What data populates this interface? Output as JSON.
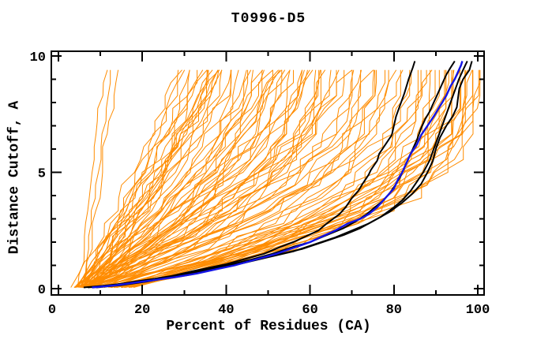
{
  "chart_data": {
    "type": "line",
    "title": "T0996-D5",
    "xlabel": "Percent of Residues (CA)",
    "ylabel": "Distance Cutoff, A",
    "xlim": [
      0,
      100
    ],
    "ylim": [
      0,
      10
    ],
    "x_major_ticks": [
      0,
      20,
      40,
      60,
      80,
      100
    ],
    "x_minor_ticks": [
      10,
      30,
      50,
      70,
      90
    ],
    "y_major_ticks": [
      0,
      5,
      10
    ],
    "y_minor_ticks": [
      1,
      2,
      3,
      4,
      6,
      7,
      8,
      9
    ],
    "grid": false,
    "legend": false,
    "colors": {
      "ensemble": "#ff8c00",
      "reference": "#000000",
      "highlight": "#1414e6",
      "frame": "#000000",
      "background": "#ffffff"
    },
    "highlight_series": [
      {
        "name": "reference-model-1",
        "color_role": "reference",
        "points": [
          [
            6,
            0.05
          ],
          [
            12,
            0.15
          ],
          [
            17,
            0.25
          ],
          [
            22,
            0.4
          ],
          [
            27,
            0.55
          ],
          [
            32,
            0.75
          ],
          [
            36,
            0.9
          ],
          [
            40,
            1.05
          ],
          [
            45,
            1.3
          ],
          [
            49,
            1.5
          ],
          [
            53,
            1.8
          ],
          [
            56,
            2.0
          ],
          [
            59,
            2.25
          ],
          [
            62,
            2.5
          ],
          [
            64,
            2.8
          ],
          [
            65.5,
            3.0
          ],
          [
            67,
            3.2
          ],
          [
            68.5,
            3.5
          ],
          [
            70,
            3.9
          ],
          [
            71.5,
            4.2
          ],
          [
            72.5,
            4.5
          ],
          [
            74,
            4.9
          ],
          [
            74.5,
            5.1
          ],
          [
            76,
            5.5
          ],
          [
            76.5,
            5.8
          ],
          [
            78,
            6.2
          ],
          [
            79.5,
            6.6
          ],
          [
            80,
            7.0
          ],
          [
            80.5,
            7.4
          ],
          [
            81.5,
            7.9
          ],
          [
            82.5,
            8.4
          ],
          [
            83.5,
            9.0
          ],
          [
            84.5,
            9.5
          ],
          [
            85,
            9.78
          ]
        ]
      },
      {
        "name": "reference-model-2",
        "color_role": "reference",
        "points": [
          [
            7,
            0.05
          ],
          [
            13,
            0.15
          ],
          [
            18,
            0.3
          ],
          [
            24,
            0.45
          ],
          [
            30,
            0.6
          ],
          [
            35,
            0.8
          ],
          [
            40,
            1.0
          ],
          [
            46,
            1.25
          ],
          [
            51,
            1.5
          ],
          [
            56,
            1.8
          ],
          [
            60,
            2.0
          ],
          [
            64,
            2.3
          ],
          [
            68,
            2.6
          ],
          [
            71,
            2.9
          ],
          [
            73.5,
            3.2
          ],
          [
            75.5,
            3.5
          ],
          [
            77.5,
            3.8
          ],
          [
            79,
            4.1
          ],
          [
            80.5,
            4.5
          ],
          [
            81.5,
            4.8
          ],
          [
            82.5,
            5.2
          ],
          [
            83.5,
            5.6
          ],
          [
            84.5,
            6.0
          ],
          [
            85.5,
            6.4
          ],
          [
            86.5,
            6.9
          ],
          [
            87.5,
            7.3
          ],
          [
            88.5,
            7.6
          ],
          [
            89.5,
            8.0
          ],
          [
            90.5,
            8.4
          ],
          [
            91.5,
            8.8
          ],
          [
            92.5,
            9.2
          ],
          [
            93.5,
            9.5
          ],
          [
            94.5,
            9.78
          ]
        ]
      },
      {
        "name": "reference-model-3",
        "color_role": "reference",
        "points": [
          [
            8,
            0.05
          ],
          [
            14,
            0.15
          ],
          [
            20,
            0.3
          ],
          [
            26,
            0.5
          ],
          [
            32,
            0.7
          ],
          [
            38,
            0.9
          ],
          [
            44,
            1.1
          ],
          [
            50,
            1.35
          ],
          [
            56,
            1.6
          ],
          [
            61,
            1.9
          ],
          [
            66,
            2.2
          ],
          [
            70,
            2.5
          ],
          [
            74,
            2.8
          ],
          [
            77,
            3.1
          ],
          [
            80,
            3.5
          ],
          [
            82,
            3.8
          ],
          [
            84,
            4.2
          ],
          [
            85.5,
            4.6
          ],
          [
            87,
            5.0
          ],
          [
            88.5,
            5.5
          ],
          [
            89.5,
            6.0
          ],
          [
            90.5,
            6.5
          ],
          [
            91.5,
            7.0
          ],
          [
            92.5,
            7.5
          ],
          [
            93.5,
            8.0
          ],
          [
            94.5,
            8.5
          ],
          [
            95.5,
            9.0
          ],
          [
            96.5,
            9.4
          ],
          [
            97.5,
            9.78
          ]
        ]
      },
      {
        "name": "reference-model-4",
        "color_role": "reference",
        "points": [
          [
            9,
            0.05
          ],
          [
            15,
            0.15
          ],
          [
            21,
            0.3
          ],
          [
            27,
            0.5
          ],
          [
            33,
            0.7
          ],
          [
            39,
            0.95
          ],
          [
            46,
            1.2
          ],
          [
            52,
            1.45
          ],
          [
            58,
            1.7
          ],
          [
            63,
            2.0
          ],
          [
            68,
            2.3
          ],
          [
            72,
            2.6
          ],
          [
            76,
            3.0
          ],
          [
            79,
            3.3
          ],
          [
            82,
            3.7
          ],
          [
            84.5,
            4.1
          ],
          [
            86.5,
            4.5
          ],
          [
            88,
            5.0
          ],
          [
            89.3,
            5.5
          ],
          [
            90,
            6.0
          ],
          [
            91,
            6.5
          ],
          [
            92.5,
            7.0
          ],
          [
            94,
            7.4
          ],
          [
            95,
            7.8
          ],
          [
            95.3,
            8.2
          ],
          [
            95.6,
            8.6
          ],
          [
            96.5,
            9.0
          ],
          [
            98,
            9.4
          ],
          [
            98.6,
            9.78
          ]
        ]
      },
      {
        "name": "highlighted-model-blue",
        "color_role": "highlight",
        "points": [
          [
            8,
            0.05
          ],
          [
            14,
            0.15
          ],
          [
            18,
            0.25
          ],
          [
            22,
            0.35
          ],
          [
            28,
            0.5
          ],
          [
            33,
            0.65
          ],
          [
            38,
            0.85
          ],
          [
            42,
            1.0
          ],
          [
            47,
            1.25
          ],
          [
            52,
            1.5
          ],
          [
            56,
            1.75
          ],
          [
            60,
            2.0
          ],
          [
            63,
            2.25
          ],
          [
            66,
            2.5
          ],
          [
            69,
            2.8
          ],
          [
            72,
            3.0
          ],
          [
            74,
            3.2
          ],
          [
            76,
            3.5
          ],
          [
            77.5,
            3.8
          ],
          [
            78.5,
            4.0
          ],
          [
            80,
            4.3
          ],
          [
            81,
            4.7
          ],
          [
            82,
            5.0
          ],
          [
            83,
            5.4
          ],
          [
            84,
            5.8
          ],
          [
            85.5,
            6.2
          ],
          [
            86.5,
            6.6
          ],
          [
            88,
            7.0
          ],
          [
            89.5,
            7.4
          ],
          [
            90.5,
            7.7
          ],
          [
            91.5,
            8.0
          ],
          [
            92.5,
            8.3
          ],
          [
            93.5,
            8.7
          ],
          [
            94.5,
            9.0
          ],
          [
            95.5,
            9.4
          ],
          [
            96,
            9.6
          ],
          [
            96.3,
            9.78
          ]
        ]
      }
    ],
    "ensemble_series": {
      "name": "model-ensemble-orange",
      "color_role": "ensemble",
      "count": 98,
      "seed": 1337,
      "y_start": 0.05,
      "y_end": 9.78,
      "y_step": 0.55,
      "curve_params_format": [
        "x_at_bottom_percent",
        "x_at_top_percent",
        "concavity_exponent"
      ],
      "curve_params": [
        [
          5,
          11.5,
          0.85
        ],
        [
          5.5,
          13,
          0.9
        ],
        [
          6,
          14.5,
          0.95
        ],
        [
          4,
          29,
          1.1
        ],
        [
          5,
          30,
          1.2
        ],
        [
          6,
          31,
          1.0
        ],
        [
          4.5,
          32,
          1.3
        ],
        [
          5,
          33,
          1.15
        ],
        [
          6.5,
          33.5,
          1.4
        ],
        [
          4,
          34,
          1.2
        ],
        [
          5.5,
          35,
          1.1
        ],
        [
          6,
          35.5,
          1.5
        ],
        [
          7,
          36,
          1.25
        ],
        [
          4.5,
          36.5,
          1.35
        ],
        [
          5,
          37,
          1.2
        ],
        [
          6,
          37.5,
          1.45
        ],
        [
          5.5,
          38,
          1.1
        ],
        [
          6.5,
          38.5,
          1.3
        ],
        [
          7,
          39,
          1.5
        ],
        [
          4.5,
          39.5,
          1.2
        ],
        [
          5,
          40,
          1.35
        ],
        [
          5,
          41,
          1.4
        ],
        [
          6,
          42,
          1.6
        ],
        [
          4.5,
          43,
          1.3
        ],
        [
          5.5,
          44,
          1.7
        ],
        [
          6,
          44.5,
          1.5
        ],
        [
          7,
          45,
          1.8
        ],
        [
          5,
          46,
          1.4
        ],
        [
          6,
          47,
          1.6
        ],
        [
          4.5,
          47.5,
          1.9
        ],
        [
          5.5,
          48,
          1.5
        ],
        [
          6.5,
          49,
          1.7
        ],
        [
          5,
          50,
          1.4
        ],
        [
          6,
          50.5,
          1.8
        ],
        [
          7,
          51,
          1.6
        ],
        [
          5.5,
          52,
          1.9
        ],
        [
          4.5,
          52.5,
          1.5
        ],
        [
          6,
          53,
          1.7
        ],
        [
          5,
          54,
          1.8
        ],
        [
          6.5,
          54.5,
          1.6
        ],
        [
          5.5,
          55,
          1.9
        ],
        [
          5,
          56,
          1.8
        ],
        [
          6,
          57,
          2.0
        ],
        [
          5.5,
          58,
          1.7
        ],
        [
          6.5,
          58.5,
          2.1
        ],
        [
          5,
          59,
          1.9
        ],
        [
          6,
          60,
          1.6
        ],
        [
          7,
          60.5,
          2.2
        ],
        [
          5.5,
          61,
          1.8
        ],
        [
          6,
          62,
          2.0
        ],
        [
          5,
          62.5,
          2.3
        ],
        [
          6.5,
          63,
          1.9
        ],
        [
          5.5,
          64,
          2.1
        ],
        [
          6,
          64.5,
          1.8
        ],
        [
          7,
          65,
          2.2
        ],
        [
          6,
          66,
          2.0
        ],
        [
          7,
          67,
          2.2
        ],
        [
          6.5,
          68,
          1.9
        ],
        [
          8,
          69,
          2.4
        ],
        [
          6,
          70,
          2.1
        ],
        [
          7.5,
          71,
          2.3
        ],
        [
          6.5,
          72,
          2.0
        ],
        [
          8,
          73,
          2.5
        ],
        [
          7,
          74,
          2.2
        ],
        [
          6.5,
          75,
          2.4
        ],
        [
          8.5,
          76,
          2.1
        ],
        [
          7,
          77,
          2.5
        ],
        [
          6,
          78,
          2.3
        ],
        [
          8,
          79,
          2.6
        ],
        [
          7.5,
          80,
          2.2
        ],
        [
          8,
          81,
          2.6
        ],
        [
          9,
          82,
          2.8
        ],
        [
          10,
          83,
          2.5
        ],
        [
          8.5,
          84,
          3.0
        ],
        [
          11,
          85,
          2.7
        ],
        [
          9.5,
          86,
          2.9
        ],
        [
          10,
          87,
          2.6
        ],
        [
          12,
          88,
          3.1
        ],
        [
          9,
          88.5,
          2.8
        ],
        [
          11,
          89,
          3.0
        ],
        [
          10.5,
          90,
          2.7
        ],
        [
          12,
          90.5,
          3.2
        ],
        [
          9.5,
          91,
          2.9
        ],
        [
          11,
          91.5,
          3.0
        ],
        [
          13,
          92,
          2.8
        ],
        [
          12,
          93,
          3.0
        ],
        [
          14,
          93.5,
          3.2
        ],
        [
          11,
          94,
          2.8
        ],
        [
          13,
          94.5,
          3.1
        ],
        [
          15,
          95,
          3.3
        ],
        [
          12,
          95.5,
          2.9
        ],
        [
          14,
          96,
          3.2
        ],
        [
          13,
          96.5,
          3.0
        ],
        [
          15,
          97,
          3.4
        ],
        [
          12.5,
          97.5,
          3.1
        ],
        [
          14,
          98,
          3.3
        ],
        [
          16,
          99,
          3.2
        ],
        [
          16,
          99.5,
          3.3
        ]
      ]
    }
  }
}
